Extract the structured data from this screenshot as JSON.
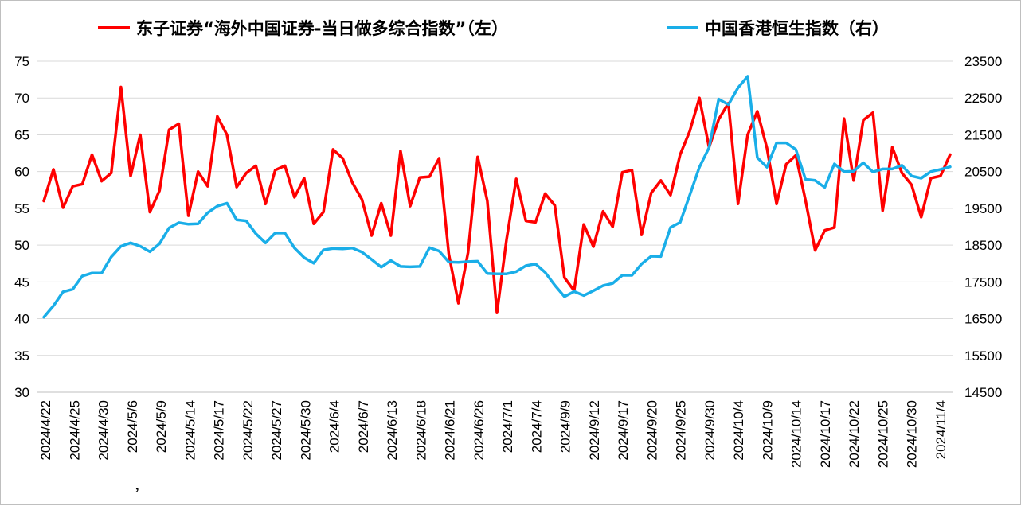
{
  "chart_data": {
    "type": "line",
    "title": "",
    "legend": [
      {
        "label": "东子证券“海外中国证券-当日做多综合指数”（左）",
        "color": "#ff0000"
      },
      {
        "label": "中国香港恒生指数（右）",
        "color": "#1aaee8"
      }
    ],
    "legend_placement": "top",
    "grid": true,
    "y_left": {
      "ylim": [
        30,
        75
      ],
      "ticks": [
        "30",
        "35",
        "40",
        "45",
        "50",
        "55",
        "60",
        "65",
        "70",
        "75"
      ]
    },
    "y_right": {
      "ylim": [
        14500,
        23500
      ],
      "ticks": [
        "14500",
        "15500",
        "16500",
        "17500",
        "18500",
        "19500",
        "20500",
        "21500",
        "22500",
        "23500"
      ]
    },
    "x_tick_labels": [
      "2024/4/22",
      "2024/4/25",
      "2024/4/30",
      "2024/5/6",
      "2024/5/9",
      "2024/5/14",
      "2024/5/17",
      "2024/5/22",
      "2024/5/27",
      "2024/5/30",
      "2024/6/4",
      "2024/6/7",
      "2024/6/13",
      "2024/6/18",
      "2024/6/21",
      "2024/6/26",
      "2024/7/1",
      "2024/7/4",
      "2024/9/9",
      "2024/9/12",
      "2024/9/17",
      "2024/9/20",
      "2024/9/25",
      "2024/9/30",
      "2024/10/4",
      "2024/10/9",
      "2024/10/14",
      "2024/10/17",
      "2024/10/22",
      "2024/10/25",
      "2024/10/30",
      "2024/11/4"
    ],
    "stray_mark": "，",
    "series": [
      {
        "name": "东子证券“海外中国证券-当日做多综合指数”（左）",
        "axis": "left",
        "color": "#ff0000",
        "values": [
          56.0,
          60.3,
          55.1,
          58.0,
          58.3,
          62.3,
          58.7,
          59.8,
          71.5,
          59.4,
          65.0,
          54.5,
          57.4,
          65.7,
          66.5,
          54.0,
          60.0,
          58.0,
          67.5,
          65.0,
          57.9,
          59.8,
          60.8,
          55.6,
          60.2,
          60.8,
          56.5,
          59.1,
          52.9,
          54.5,
          63.0,
          61.8,
          58.5,
          56.2,
          51.3,
          55.7,
          51.3,
          62.8,
          55.3,
          59.2,
          59.3,
          61.8,
          48.8,
          42.1,
          49.0,
          62.0,
          56.0,
          40.8,
          50.8,
          59.0,
          53.3,
          53.1,
          57.0,
          55.4,
          45.6,
          43.8,
          52.8,
          49.8,
          54.6,
          52.5,
          59.9,
          60.2,
          51.4,
          57.1,
          58.8,
          56.8,
          62.3,
          65.5,
          70.0,
          63.3,
          67.1,
          69.3,
          55.6,
          65.0,
          68.2,
          63.2,
          55.6,
          61.0,
          62.2,
          56.1,
          49.3,
          52.0,
          52.4,
          67.2,
          58.8,
          67.0,
          68.0,
          54.7,
          63.3,
          59.8,
          58.2,
          53.8,
          59.1,
          59.4,
          62.3
        ]
      },
      {
        "name": "中国香港恒生指数（右）",
        "axis": "right",
        "color": "#1aaee8",
        "values": [
          16540,
          16850,
          17230,
          17300,
          17660,
          17740,
          17740,
          18180,
          18470,
          18560,
          18470,
          18320,
          18540,
          18970,
          19110,
          19070,
          19080,
          19380,
          19560,
          19640,
          19190,
          19160,
          18810,
          18560,
          18830,
          18830,
          18420,
          18160,
          18010,
          18370,
          18410,
          18400,
          18420,
          18310,
          18110,
          17900,
          18080,
          17920,
          17910,
          17920,
          18430,
          18340,
          18040,
          18030,
          18050,
          18060,
          17730,
          17720,
          17720,
          17780,
          17940,
          17990,
          17760,
          17410,
          17100,
          17240,
          17130,
          17260,
          17400,
          17460,
          17680,
          17680,
          17990,
          18200,
          18190,
          18980,
          19120,
          19860,
          20620,
          21150,
          22470,
          22320,
          22780,
          23090,
          20880,
          20620,
          21280,
          21280,
          21100,
          20290,
          20260,
          20070,
          20710,
          20500,
          20510,
          20740,
          20490,
          20570,
          20570,
          20670,
          20380,
          20320,
          20500,
          20560,
          20630
        ]
      }
    ]
  }
}
